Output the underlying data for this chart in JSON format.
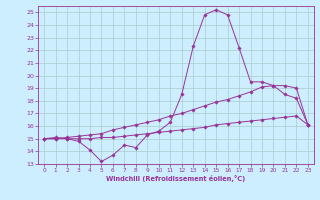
{
  "background_color": "#cceeff",
  "grid_color": "#aacccc",
  "line_color": "#993399",
  "xlabel": "Windchill (Refroidissement éolien,°C)",
  "xlim": [
    -0.5,
    23.5
  ],
  "ylim": [
    13,
    25.5
  ],
  "xticks": [
    0,
    1,
    2,
    3,
    4,
    5,
    6,
    7,
    8,
    9,
    10,
    11,
    12,
    13,
    14,
    15,
    16,
    17,
    18,
    19,
    20,
    21,
    22,
    23
  ],
  "yticks": [
    13,
    14,
    15,
    16,
    17,
    18,
    19,
    20,
    21,
    22,
    23,
    24,
    25
  ],
  "series": [
    {
      "x": [
        0,
        1,
        2,
        3,
        4,
        5,
        6,
        7,
        8,
        9,
        10,
        11,
        12,
        13,
        14,
        15,
        16,
        17,
        18,
        19,
        20,
        21,
        22,
        23
      ],
      "y": [
        15.0,
        15.1,
        15.0,
        14.8,
        14.1,
        13.2,
        13.7,
        14.5,
        14.3,
        15.3,
        15.6,
        16.3,
        18.5,
        22.3,
        24.8,
        25.2,
        24.8,
        22.2,
        19.5,
        19.5,
        19.2,
        18.5,
        18.2,
        16.1
      ]
    },
    {
      "x": [
        0,
        1,
        2,
        3,
        4,
        5,
        6,
        7,
        8,
        9,
        10,
        11,
        12,
        13,
        14,
        15,
        16,
        17,
        18,
        19,
        20,
        21,
        22,
        23
      ],
      "y": [
        15.0,
        15.0,
        15.1,
        15.2,
        15.3,
        15.4,
        15.7,
        15.9,
        16.1,
        16.3,
        16.5,
        16.8,
        17.0,
        17.3,
        17.6,
        17.9,
        18.1,
        18.4,
        18.7,
        19.1,
        19.2,
        19.2,
        19.0,
        16.1
      ]
    },
    {
      "x": [
        0,
        1,
        2,
        3,
        4,
        5,
        6,
        7,
        8,
        9,
        10,
        11,
        12,
        13,
        14,
        15,
        16,
        17,
        18,
        19,
        20,
        21,
        22,
        23
      ],
      "y": [
        15.0,
        15.0,
        15.0,
        15.0,
        15.0,
        15.1,
        15.1,
        15.2,
        15.3,
        15.4,
        15.5,
        15.6,
        15.7,
        15.8,
        15.9,
        16.1,
        16.2,
        16.3,
        16.4,
        16.5,
        16.6,
        16.7,
        16.8,
        16.1
      ]
    }
  ]
}
